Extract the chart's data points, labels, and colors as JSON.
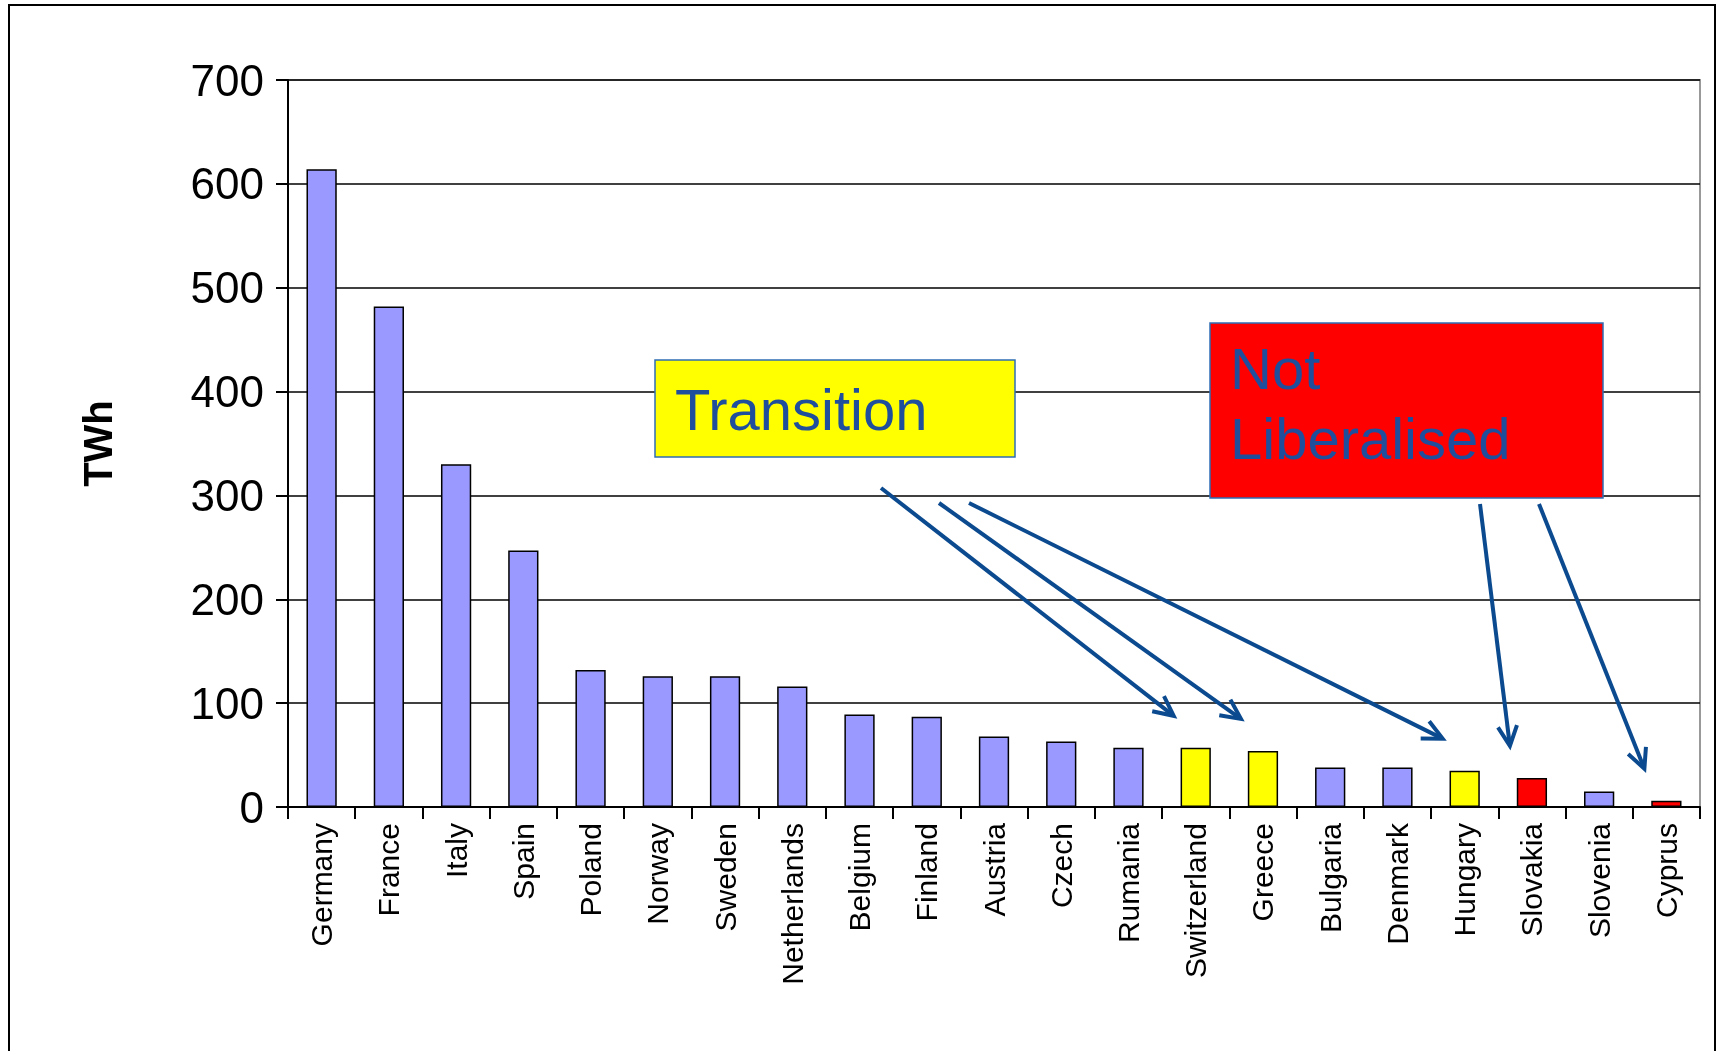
{
  "chart_data": {
    "type": "bar",
    "ylabel": "TWh",
    "categories": [
      "Germany",
      "France",
      "Italy",
      "Spain",
      "Poland",
      "Norway",
      "Sweden",
      "Netherlands",
      "Belgium",
      "Finland",
      "Austria",
      "Czech",
      "Rumania",
      "Switzerland",
      "Greece",
      "Bulgaria",
      "Denmark",
      "Hungary",
      "Slovakia",
      "Slovenia",
      "Cyprus"
    ],
    "values": [
      614,
      482,
      330,
      247,
      132,
      126,
      126,
      116,
      89,
      87,
      68,
      63,
      57,
      57,
      54,
      38,
      38,
      35,
      28,
      15,
      6
    ],
    "colors": [
      "#9999ff",
      "#9999ff",
      "#9999ff",
      "#9999ff",
      "#9999ff",
      "#9999ff",
      "#9999ff",
      "#9999ff",
      "#9999ff",
      "#9999ff",
      "#9999ff",
      "#9999ff",
      "#9999ff",
      "#ffff00",
      "#ffff00",
      "#9999ff",
      "#9999ff",
      "#ffff00",
      "#ff0000",
      "#9999ff",
      "#ff0000"
    ],
    "ylim": [
      0,
      700
    ],
    "yticks": [
      0,
      100,
      200,
      300,
      400,
      500,
      600,
      700
    ],
    "grid": "y",
    "annotations": [
      "Transition",
      "Not Liberalised"
    ]
  }
}
